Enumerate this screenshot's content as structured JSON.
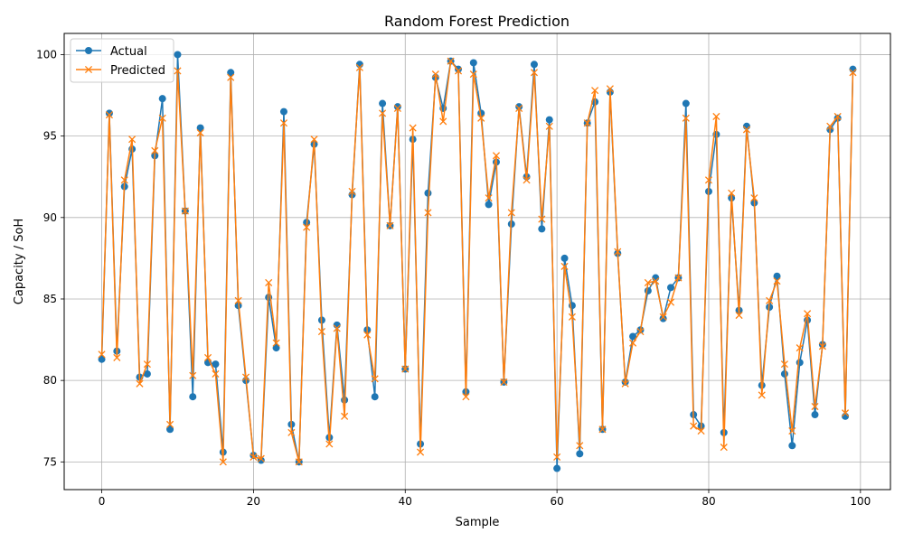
{
  "chart_data": {
    "type": "line",
    "title": "Random Forest Prediction",
    "xlabel": "Sample",
    "ylabel": "Capacity / SoH",
    "xlim": [
      -4.95,
      103.95
    ],
    "ylim": [
      73.3,
      101.3
    ],
    "xticks": [
      0,
      20,
      40,
      60,
      80,
      100
    ],
    "yticks": [
      75,
      80,
      85,
      90,
      95,
      100
    ],
    "grid": true,
    "legend_position": "top-left",
    "x": [
      0,
      1,
      2,
      3,
      4,
      5,
      6,
      7,
      8,
      9,
      10,
      11,
      12,
      13,
      14,
      15,
      16,
      17,
      18,
      19,
      20,
      21,
      22,
      23,
      24,
      25,
      26,
      27,
      28,
      29,
      30,
      31,
      32,
      33,
      34,
      35,
      36,
      37,
      38,
      39,
      40,
      41,
      42,
      43,
      44,
      45,
      46,
      47,
      48,
      49,
      50,
      51,
      52,
      53,
      54,
      55,
      56,
      57,
      58,
      59,
      60,
      61,
      62,
      63,
      64,
      65,
      66,
      67,
      68,
      69,
      70,
      71,
      72,
      73,
      74,
      75,
      76,
      77,
      78,
      79,
      80,
      81,
      82,
      83,
      84,
      85,
      86,
      87,
      88,
      89,
      90,
      91,
      92,
      93,
      94,
      95,
      96,
      97,
      98,
      99
    ],
    "series": [
      {
        "name": "Actual",
        "color": "#1f77b4",
        "marker": "circle",
        "values": [
          81.3,
          96.4,
          81.8,
          91.9,
          94.2,
          80.2,
          80.4,
          93.8,
          97.3,
          77.0,
          100.0,
          90.4,
          79.0,
          95.5,
          81.1,
          81.0,
          75.6,
          98.9,
          84.6,
          80.0,
          75.4,
          75.1,
          85.1,
          82.0,
          96.5,
          77.3,
          75.0,
          89.7,
          94.5,
          83.7,
          76.5,
          83.4,
          78.8,
          91.4,
          99.4,
          83.1,
          79.0,
          97.0,
          89.5,
          96.8,
          80.7,
          94.8,
          76.1,
          91.5,
          98.6,
          96.7,
          99.6,
          99.1,
          79.3,
          99.5,
          96.4,
          90.8,
          93.4,
          79.9,
          89.6,
          96.8,
          92.5,
          99.4,
          89.3,
          96.0,
          74.6,
          87.5,
          84.6,
          75.5,
          95.8,
          97.1,
          77.0,
          97.7,
          87.8,
          79.9,
          82.7,
          83.1,
          85.5,
          86.3,
          83.8,
          85.7,
          86.3,
          97.0,
          77.9,
          77.2,
          91.6,
          95.1,
          76.8,
          91.2,
          84.3,
          95.6,
          90.9,
          79.7,
          84.5,
          86.4,
          80.4,
          76.0,
          81.1,
          83.7,
          77.9,
          82.2,
          95.4,
          96.1,
          77.8,
          99.1
        ]
      },
      {
        "name": "Predicted",
        "color": "#ff7f0e",
        "marker": "x",
        "values": [
          81.6,
          96.3,
          81.4,
          92.3,
          94.8,
          79.8,
          81.0,
          94.1,
          96.1,
          77.3,
          99.0,
          90.4,
          80.3,
          95.2,
          81.4,
          80.4,
          75.0,
          98.6,
          84.9,
          80.2,
          75.3,
          75.2,
          86.0,
          82.3,
          95.8,
          76.8,
          75.0,
          89.4,
          94.8,
          83.0,
          76.1,
          83.2,
          77.8,
          91.6,
          99.2,
          82.8,
          80.1,
          96.4,
          89.5,
          96.7,
          80.7,
          95.5,
          75.6,
          90.3,
          98.8,
          95.9,
          99.6,
          99.0,
          79.0,
          98.8,
          96.1,
          91.2,
          93.8,
          79.9,
          90.3,
          96.7,
          92.3,
          98.9,
          89.9,
          95.6,
          75.3,
          87.0,
          83.9,
          76.0,
          95.8,
          97.8,
          77.0,
          97.9,
          87.9,
          79.8,
          82.3,
          83.0,
          86.0,
          86.1,
          83.9,
          84.8,
          86.3,
          96.1,
          77.2,
          76.9,
          92.3,
          96.2,
          75.9,
          91.5,
          84.0,
          95.4,
          91.2,
          79.1,
          84.9,
          86.1,
          81.0,
          76.9,
          82.0,
          84.1,
          78.4,
          82.1,
          95.6,
          96.2,
          78.0,
          98.9
        ]
      }
    ]
  }
}
